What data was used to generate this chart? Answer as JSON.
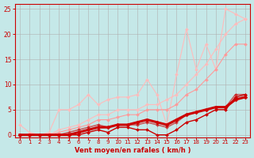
{
  "background_color": "#c5e8e8",
  "grid_color": "#b0b0b0",
  "xlabel": "Vent moyen/en rafales ( km/h )",
  "xlabel_color": "#cc0000",
  "tick_color": "#cc0000",
  "axis_line_color": "#cc0000",
  "xlim": [
    -0.5,
    23.5
  ],
  "ylim": [
    -0.5,
    26
  ],
  "xticks": [
    0,
    1,
    2,
    3,
    4,
    5,
    6,
    7,
    8,
    9,
    10,
    11,
    12,
    13,
    14,
    15,
    16,
    17,
    18,
    19,
    20,
    21,
    22,
    23
  ],
  "yticks": [
    0,
    5,
    10,
    15,
    20,
    25
  ],
  "series": [
    {
      "x": [
        0,
        1,
        2,
        3,
        4,
        5,
        6,
        7,
        8,
        9,
        10,
        11,
        12,
        13,
        14,
        15,
        16,
        17,
        18,
        19,
        20,
        21,
        22,
        23
      ],
      "y": [
        0,
        0,
        0,
        0,
        1,
        1.5,
        2,
        3,
        4,
        4,
        5,
        5,
        5,
        6,
        6,
        7,
        8,
        10,
        12,
        14,
        17,
        20,
        22,
        23
      ],
      "color": "#ffbbbb",
      "linewidth": 0.8,
      "marker": "D",
      "markersize": 2,
      "alpha": 1.0,
      "zorder": 1
    },
    {
      "x": [
        0,
        1,
        2,
        3,
        4,
        5,
        6,
        7,
        8,
        9,
        10,
        11,
        12,
        13,
        14,
        15,
        16,
        17,
        18,
        19,
        20,
        21,
        22,
        23
      ],
      "y": [
        2,
        0.5,
        0,
        0.5,
        5,
        5,
        6,
        8,
        6,
        7,
        7.5,
        7.5,
        8,
        11,
        8,
        2,
        12,
        21,
        13,
        18,
        13,
        25,
        24,
        23
      ],
      "color": "#ffbbbb",
      "linewidth": 0.8,
      "marker": "D",
      "markersize": 2,
      "alpha": 1.0,
      "zorder": 2
    },
    {
      "x": [
        0,
        1,
        2,
        3,
        4,
        5,
        6,
        7,
        8,
        9,
        10,
        11,
        12,
        13,
        14,
        15,
        16,
        17,
        18,
        19,
        20,
        21,
        22,
        23
      ],
      "y": [
        0,
        0,
        0,
        0,
        0.5,
        1,
        1.5,
        2,
        3,
        3,
        3.5,
        4,
        4,
        5,
        5,
        5,
        6,
        8,
        9,
        11,
        13,
        16,
        18,
        18
      ],
      "color": "#ff9999",
      "linewidth": 0.8,
      "marker": "D",
      "markersize": 2,
      "alpha": 1.0,
      "zorder": 3
    },
    {
      "x": [
        0,
        1,
        2,
        3,
        4,
        5,
        6,
        7,
        8,
        9,
        10,
        11,
        12,
        13,
        14,
        15,
        16,
        17,
        18,
        19,
        20,
        21,
        22,
        23
      ],
      "y": [
        0,
        0,
        0,
        0,
        0,
        0,
        0.5,
        1,
        1.5,
        1.5,
        2,
        2,
        2.5,
        3,
        2.5,
        2,
        3,
        4,
        4.5,
        5,
        5.5,
        5.5,
        7,
        7.5
      ],
      "color": "#cc0000",
      "linewidth": 2.2,
      "marker": "D",
      "markersize": 2.5,
      "alpha": 1.0,
      "zorder": 6
    },
    {
      "x": [
        0,
        1,
        2,
        3,
        4,
        5,
        6,
        7,
        8,
        9,
        10,
        11,
        12,
        13,
        14,
        15,
        16,
        17,
        18,
        19,
        20,
        21,
        22,
        23
      ],
      "y": [
        0,
        0,
        0,
        0,
        0,
        0,
        0,
        0.5,
        1,
        0.5,
        1.5,
        1.5,
        1,
        1,
        0,
        0,
        1,
        2.5,
        3,
        4,
        5,
        5,
        7.5,
        8
      ],
      "color": "#cc0000",
      "linewidth": 1.0,
      "marker": "D",
      "markersize": 2,
      "alpha": 1.0,
      "zorder": 7
    },
    {
      "x": [
        0,
        1,
        2,
        3,
        4,
        5,
        6,
        7,
        8,
        9,
        10,
        11,
        12,
        13,
        14,
        15,
        16,
        17,
        18,
        19,
        20,
        21,
        22,
        23
      ],
      "y": [
        0,
        0,
        0,
        0,
        0,
        0.5,
        1,
        1.5,
        2,
        1.5,
        2,
        2,
        2,
        2.5,
        2,
        1.5,
        2.5,
        4,
        4.5,
        5,
        5.5,
        5.5,
        8,
        8
      ],
      "color": "#cc0000",
      "linewidth": 1.2,
      "marker": "D",
      "markersize": 2,
      "alpha": 0.6,
      "zorder": 5
    }
  ]
}
